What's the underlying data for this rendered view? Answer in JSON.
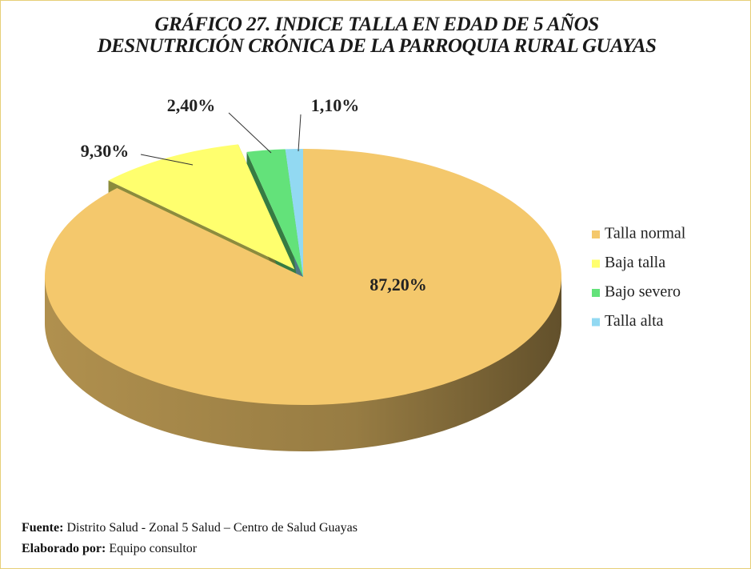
{
  "chart_data": {
    "type": "pie",
    "title": "GRÁFICO 27. INDICE TALLA EN EDAD DE 5 AÑOS DESNUTRICIÓN CRÓNICA DE LA PARROQUIA RURAL GUAYAS",
    "categories": [
      "Talla normal",
      "Baja talla",
      "Bajo severo",
      "Talla alta"
    ],
    "values": [
      87.2,
      9.3,
      2.4,
      1.1
    ],
    "value_labels": [
      "87,20%",
      "9,30%",
      "2,40%",
      "1,10%"
    ],
    "colors": [
      "#f4c86c",
      "#ffff6e",
      "#63e27a",
      "#92d9f2"
    ],
    "legend": "right",
    "source": {
      "label": "Fuente:",
      "text": "Distrito Salud - Zonal 5 Salud – Centro de Salud Guayas"
    },
    "credit": {
      "label": "Elaborado por:",
      "text": "Equipo consultor"
    }
  }
}
